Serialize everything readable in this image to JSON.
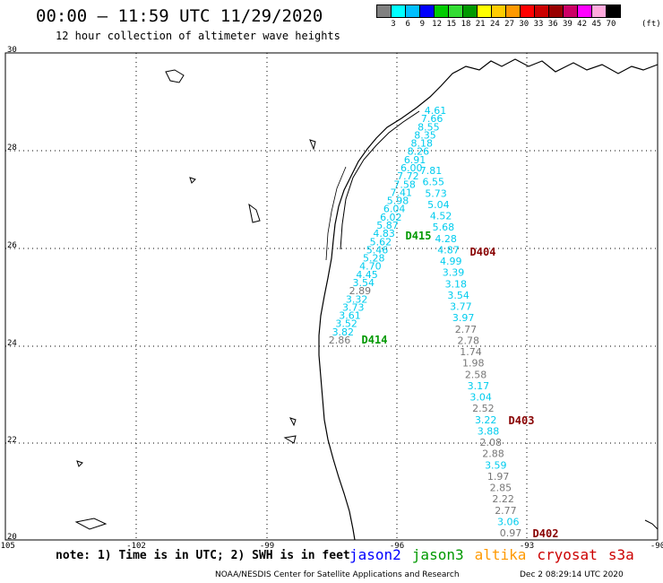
{
  "header": {
    "title": "00:00 – 11:59 UTC 11/29/2020",
    "subtitle": "12 hour collection of altimeter wave heights"
  },
  "colorbar": {
    "colors": [
      "#808080",
      "#00ffff",
      "#00bfff",
      "#0000ff",
      "#00cc00",
      "#33dd33",
      "#009900",
      "#ffff00",
      "#ffcc00",
      "#ff9900",
      "#ff0000",
      "#cc0000",
      "#990000",
      "#cc0066",
      "#ff00ff",
      "#ffaadd",
      "#000000"
    ],
    "labels": [
      "3",
      "6",
      "9",
      "12",
      "15",
      "18",
      "21",
      "24",
      "27",
      "30",
      "33",
      "36",
      "39",
      "42",
      "45",
      "70"
    ],
    "unit": "(ft)"
  },
  "map": {
    "lat_labels": [
      "30",
      "28",
      "26",
      "24",
      "22",
      "20"
    ],
    "lon_labels": [
      "-105",
      "-102",
      "-99",
      "-96",
      "-93",
      "-90"
    ],
    "colors": {
      "cyan": "#00ccee",
      "gray": "#777777",
      "green": "#009900",
      "darkred": "#880000"
    },
    "passes": [
      {
        "id": "D415",
        "color": "green"
      },
      {
        "id": "D414",
        "color": "green"
      },
      {
        "id": "D404",
        "color": "darkred"
      },
      {
        "id": "D403",
        "color": "darkred"
      },
      {
        "id": "D402",
        "color": "darkred"
      }
    ],
    "track_left": [
      {
        "v": "4.61",
        "c": "cyan"
      },
      {
        "v": "7.66",
        "c": "cyan"
      },
      {
        "v": "8.55",
        "c": "cyan"
      },
      {
        "v": "8.35",
        "c": "cyan"
      },
      {
        "v": "8.18",
        "c": "cyan"
      },
      {
        "v": "8.26",
        "c": "cyan"
      },
      {
        "v": "6.91",
        "c": "cyan"
      },
      {
        "v": "6.00",
        "c": "cyan"
      },
      {
        "v": "7.72",
        "c": "cyan"
      },
      {
        "v": "7.58",
        "c": "cyan"
      },
      {
        "v": "7.41",
        "c": "cyan"
      },
      {
        "v": "5.98",
        "c": "cyan"
      },
      {
        "v": "6.04",
        "c": "cyan"
      },
      {
        "v": "6.02",
        "c": "cyan"
      },
      {
        "v": "5.87",
        "c": "cyan"
      },
      {
        "v": "4.83",
        "c": "cyan"
      },
      {
        "v": "5.62",
        "c": "cyan"
      },
      {
        "v": "5.46",
        "c": "cyan"
      },
      {
        "v": "5.28",
        "c": "cyan"
      },
      {
        "v": "4.70",
        "c": "cyan"
      },
      {
        "v": "4.45",
        "c": "cyan"
      },
      {
        "v": "3.54",
        "c": "cyan"
      },
      {
        "v": "2.89",
        "c": "gray"
      },
      {
        "v": "3.32",
        "c": "cyan"
      },
      {
        "v": "3.73",
        "c": "cyan"
      },
      {
        "v": "3.61",
        "c": "cyan"
      },
      {
        "v": "3.52",
        "c": "cyan"
      },
      {
        "v": "3.82",
        "c": "cyan"
      },
      {
        "v": "2.86",
        "c": "gray"
      }
    ],
    "track_right": [
      {
        "v": "7.81",
        "c": "cyan"
      },
      {
        "v": "6.55",
        "c": "cyan"
      },
      {
        "v": "5.73",
        "c": "cyan"
      },
      {
        "v": "5.04",
        "c": "cyan"
      },
      {
        "v": "4.52",
        "c": "cyan"
      },
      {
        "v": "5.68",
        "c": "cyan"
      },
      {
        "v": "4.28",
        "c": "cyan"
      },
      {
        "v": "4.87",
        "c": "cyan"
      },
      {
        "v": "4.99",
        "c": "cyan"
      },
      {
        "v": "3.39",
        "c": "cyan"
      },
      {
        "v": "3.18",
        "c": "cyan"
      },
      {
        "v": "3.54",
        "c": "cyan"
      },
      {
        "v": "3.77",
        "c": "cyan"
      },
      {
        "v": "3.97",
        "c": "cyan"
      },
      {
        "v": "2.77",
        "c": "gray"
      },
      {
        "v": "2.78",
        "c": "gray"
      },
      {
        "v": "1.74",
        "c": "gray"
      },
      {
        "v": "1.98",
        "c": "gray"
      },
      {
        "v": "2.58",
        "c": "gray"
      },
      {
        "v": "3.17",
        "c": "cyan"
      },
      {
        "v": "3.04",
        "c": "cyan"
      },
      {
        "v": "2.52",
        "c": "gray"
      },
      {
        "v": "3.22",
        "c": "cyan"
      },
      {
        "v": "3.88",
        "c": "cyan"
      },
      {
        "v": "2.08",
        "c": "gray"
      },
      {
        "v": "2.88",
        "c": "gray"
      },
      {
        "v": "3.59",
        "c": "cyan"
      },
      {
        "v": "1.97",
        "c": "gray"
      },
      {
        "v": "2.85",
        "c": "gray"
      },
      {
        "v": "2.22",
        "c": "gray"
      },
      {
        "v": "2.77",
        "c": "gray"
      },
      {
        "v": "3.06",
        "c": "cyan"
      },
      {
        "v": "0.97",
        "c": "gray"
      }
    ]
  },
  "note": "note: 1) Time is in UTC; 2) SWH is in feet",
  "legend": [
    {
      "label": "jason2",
      "color": "#0000ff"
    },
    {
      "label": "jason3",
      "color": "#009900"
    },
    {
      "label": "altika",
      "color": "#ff9900"
    },
    {
      "label": "cryosat",
      "color": "#cc0000"
    },
    {
      "label": "s3a",
      "color": "#cc0000"
    }
  ],
  "footer": {
    "left": "NOAA/NESDIS Center for Satellite Applications and Research",
    "right": "Dec  2 08:29:14 UTC 2020"
  }
}
